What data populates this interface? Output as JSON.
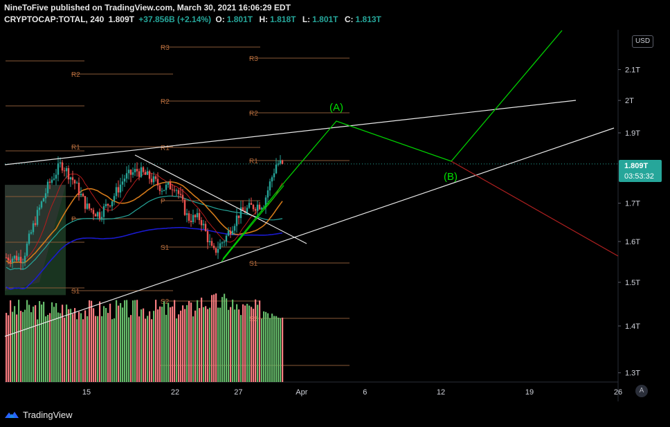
{
  "header": {
    "publish_line": "NineToFive published on TradingView.com, March 30, 2021 16:06:29 EDT",
    "symbol": "CRYPTOCAP:TOTAL, 240",
    "last": "1.809T",
    "change": "+37.856B (+2.14%)",
    "o_label": "O:",
    "o_value": "1.801T",
    "h_label": "H:",
    "h_value": "1.818T",
    "l_label": "L:",
    "l_value": "1.801T",
    "c_label": "C:",
    "c_value": "1.813T"
  },
  "currency_button": "USD",
  "current_price": {
    "price": "1.809T",
    "countdown": "03:53:32"
  },
  "auto_button": "A",
  "footer": {
    "brand": "TradingView"
  },
  "colors": {
    "background": "#000000",
    "up_candle": "#26a69a",
    "down_candle": "#ef5350",
    "volume_up": "#66bb6a",
    "volume_down": "#f77c80",
    "wave_line": "#00d000",
    "wave_label": "#00e000",
    "pivot": "#b46a3a",
    "pivot_line": "#8a5a38",
    "trendline": "#e8e8e8",
    "ma_blue": "#1a1ad0",
    "ma_orange": "#d47a1a",
    "ma_teal": "#26a69a",
    "ma_red": "#b71c1c",
    "projection_red": "#b02020"
  },
  "chart_data": {
    "type": "candlestick",
    "symbol": "CRYPTOCAP:TOTAL",
    "interval": "240",
    "y_axis": {
      "scale": "log",
      "ticks": [
        "2.1T",
        "2T",
        "1.9T",
        "1.7T",
        "1.6T",
        "1.5T",
        "1.4T",
        "1.3T"
      ],
      "tick_values": [
        2.1,
        2.0,
        1.9,
        1.7,
        1.6,
        1.5,
        1.4,
        1.3
      ],
      "unit": "T"
    },
    "x_axis": {
      "ticks": [
        "15",
        "22",
        "27",
        "Apr",
        "6",
        "12",
        "19",
        "26"
      ]
    },
    "last_price": 1.809,
    "price_path": [
      [
        "2021-03-10",
        1.56
      ],
      [
        "2021-03-11",
        1.66
      ],
      [
        "2021-03-12",
        1.75
      ],
      [
        "2021-03-13",
        1.81
      ],
      [
        "2021-03-14",
        1.76
      ],
      [
        "2021-03-15",
        1.69
      ],
      [
        "2021-03-16",
        1.67
      ],
      [
        "2021-03-17",
        1.71
      ],
      [
        "2021-03-18",
        1.77
      ],
      [
        "2021-03-19",
        1.79
      ],
      [
        "2021-03-20",
        1.77
      ],
      [
        "2021-03-21",
        1.74
      ],
      [
        "2021-03-22",
        1.75
      ],
      [
        "2021-03-23",
        1.66
      ],
      [
        "2021-03-24",
        1.66
      ],
      [
        "2021-03-25",
        1.57
      ],
      [
        "2021-03-26",
        1.61
      ],
      [
        "2021-03-27",
        1.67
      ],
      [
        "2021-03-28",
        1.69
      ],
      [
        "2021-03-29",
        1.7
      ],
      [
        "2021-03-30",
        1.81
      ]
    ],
    "pivot_levels": [
      {
        "label": "R3",
        "value": 2.12
      },
      {
        "label": "R2",
        "value": 2.06
      },
      {
        "label": "R2",
        "value": 1.98
      },
      {
        "label": "R2",
        "value": 1.96
      },
      {
        "label": "R1",
        "value": 1.86
      },
      {
        "label": "R1",
        "value": 1.82
      },
      {
        "label": "P",
        "value": 1.72
      },
      {
        "label": "P",
        "value": 1.68
      },
      {
        "label": "S1",
        "value": 1.59
      },
      {
        "label": "S1",
        "value": 1.54
      },
      {
        "label": "S1",
        "value": 1.47
      },
      {
        "label": "S2",
        "value": 1.44
      },
      {
        "label": "S2",
        "value": 1.39
      }
    ],
    "annotations": [
      {
        "text": "(A)",
        "x": "2021-04-03",
        "y": 1.94
      },
      {
        "text": "(B)",
        "x": "2021-04-12",
        "y": 1.81
      }
    ],
    "grid": false,
    "legend": "none"
  }
}
